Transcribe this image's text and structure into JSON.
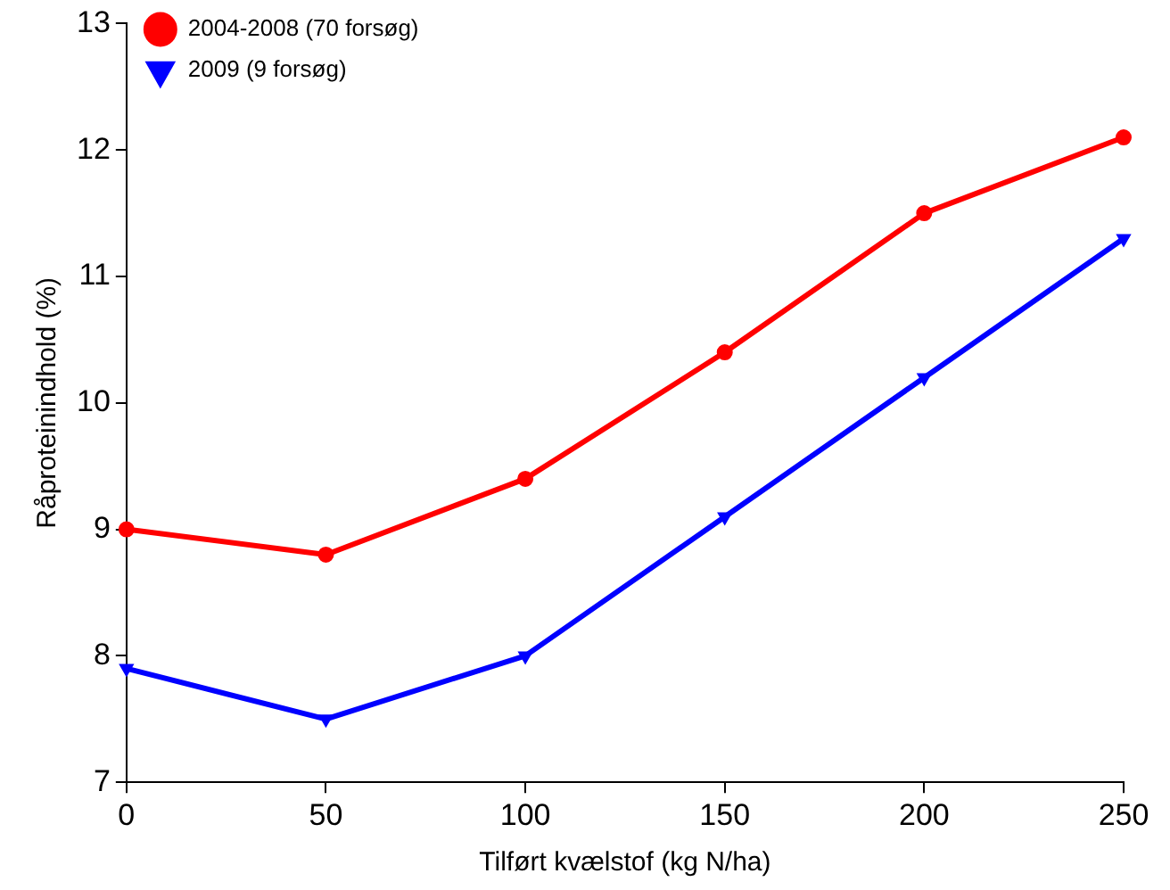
{
  "chart_data": {
    "type": "line",
    "xlabel": "Tilført kvælstof (kg N/ha)",
    "ylabel": "Råproteinindhold (%)",
    "x": [
      0,
      50,
      100,
      150,
      200,
      250
    ],
    "series": [
      {
        "name": "2004-2008 (70 forsøg)",
        "color": "#ff0000",
        "marker": "circle",
        "values": [
          9.0,
          8.8,
          9.4,
          10.4,
          11.5,
          12.1
        ]
      },
      {
        "name": "2009 (9 forsøg)",
        "color": "#0000ff",
        "marker": "triangle",
        "values": [
          7.9,
          7.5,
          8.0,
          9.1,
          10.2,
          11.3
        ]
      }
    ],
    "xlim": [
      0,
      250
    ],
    "xticks": [
      0,
      50,
      100,
      150,
      200,
      250
    ],
    "ylim": [
      7,
      13
    ],
    "yticks": [
      7,
      8,
      9,
      10,
      11,
      12,
      13
    ],
    "grid": false,
    "legend": "top left",
    "line_style": "solid"
  }
}
